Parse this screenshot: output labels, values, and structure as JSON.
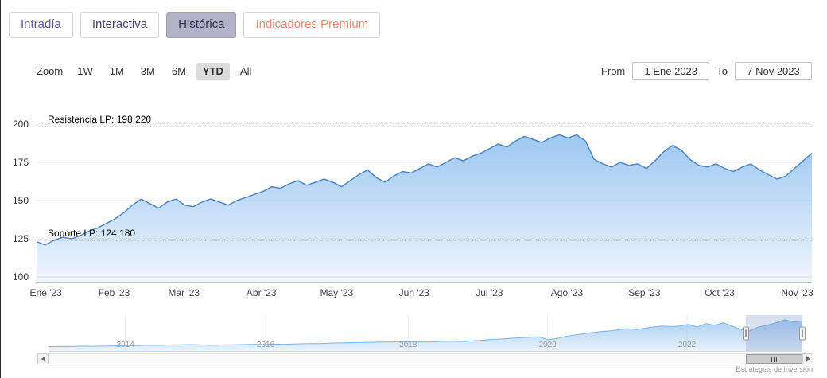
{
  "tabs": [
    {
      "label": "Intradía"
    },
    {
      "label": "Interactiva"
    },
    {
      "label": "Histórica"
    },
    {
      "label": "Indicadores Premium"
    }
  ],
  "active_tab": "Histórica",
  "range_selector": {
    "zoom_label": "Zoom",
    "buttons": [
      "1W",
      "1M",
      "3M",
      "6M",
      "YTD",
      "All"
    ],
    "selected": "YTD",
    "from_label": "From",
    "from_value": "1 Ene 2023",
    "to_label": "To",
    "to_value": "7 Nov 2023"
  },
  "annotations": {
    "resistance": {
      "label": "Resistencia LP: 198,220",
      "value": 198.22
    },
    "support": {
      "label": "Soporte LP: 124,180",
      "value": 124.18
    }
  },
  "credit": "Estrategias de Inversión",
  "colors": {
    "accent_purple": "#5b5b9f",
    "tab_selected_bg": "#b4b2c6",
    "premium_salmon": "#e78a72",
    "series_line": "#4e86c6",
    "series_fill": "#7cb5ec",
    "plotline_black": "#000000",
    "gridline": "#e6e6e6"
  },
  "chart_data": [
    {
      "type": "area",
      "title": "",
      "xlabel": "",
      "ylabel": "",
      "ylim": [
        100,
        200
      ],
      "grid": "horizontal",
      "yticks": [
        100,
        125,
        150,
        175,
        200
      ],
      "xticks": [
        {
          "label": "Ene '23",
          "pos": 1.2
        },
        {
          "label": "Feb '23",
          "pos": 10.0
        },
        {
          "label": "Mar '23",
          "pos": 19.0
        },
        {
          "label": "Abr '23",
          "pos": 29.0
        },
        {
          "label": "May '23",
          "pos": 38.7
        },
        {
          "label": "Jun '23",
          "pos": 48.7
        },
        {
          "label": "Jul '23",
          "pos": 58.4
        },
        {
          "label": "Ago '23",
          "pos": 68.4
        },
        {
          "label": "Sep '23",
          "pos": 78.4
        },
        {
          "label": "Oct '23",
          "pos": 88.1
        },
        {
          "label": "Nov '23",
          "pos": 98.1
        }
      ],
      "line_color": "#4e86c6",
      "fill_color": "#7cb5ec",
      "values": [
        123,
        121,
        124,
        126,
        125,
        127,
        130,
        132,
        135,
        138,
        142,
        147,
        151,
        148,
        145,
        149,
        151,
        147,
        146,
        149,
        151,
        149,
        147,
        150,
        152,
        154,
        156,
        159,
        158,
        161,
        163,
        160,
        162,
        164,
        162,
        159,
        163,
        167,
        170,
        165,
        162,
        166,
        169,
        168,
        171,
        174,
        172,
        175,
        178,
        176,
        179,
        181,
        184,
        187,
        185,
        189,
        192,
        190,
        188,
        191,
        193,
        191,
        193,
        189,
        177,
        174,
        172,
        175,
        173,
        174,
        171,
        176,
        182,
        186,
        183,
        177,
        173,
        172,
        174,
        171,
        169,
        172,
        174,
        170,
        167,
        164,
        166,
        171,
        176,
        181
      ]
    },
    {
      "type": "area",
      "role": "navigator",
      "ylim": [
        0,
        215
      ],
      "xticks": [
        {
          "label": "2014",
          "pos": 10.2
        },
        {
          "label": "2016",
          "pos": 28.8
        },
        {
          "label": "2018",
          "pos": 47.7
        },
        {
          "label": "2020",
          "pos": 66.2
        },
        {
          "label": "2022",
          "pos": 84.7
        }
      ],
      "line_color": "#7cb5ec",
      "fill_color": "#7cb5ec",
      "selected_from_pct": 92.5,
      "selected_to_pct": 100,
      "values": [
        30,
        31,
        31,
        32,
        33,
        32,
        33,
        34,
        35,
        37,
        36,
        38,
        39,
        38,
        40,
        41,
        42,
        41,
        39,
        38,
        40,
        41,
        42,
        43,
        43,
        44,
        45,
        44,
        46,
        47,
        48,
        48,
        50,
        52,
        53,
        54,
        55,
        56,
        57,
        58,
        59,
        60,
        58,
        57,
        59,
        61,
        62,
        60,
        63,
        66,
        70,
        73,
        76,
        80,
        83,
        86,
        88,
        70,
        78,
        90,
        98,
        105,
        112,
        118,
        122,
        128,
        135,
        130,
        138,
        145,
        150,
        148,
        150,
        160,
        145,
        165,
        155,
        170,
        150,
        130,
        124,
        145,
        155,
        170,
        188,
        175,
        181
      ]
    }
  ]
}
